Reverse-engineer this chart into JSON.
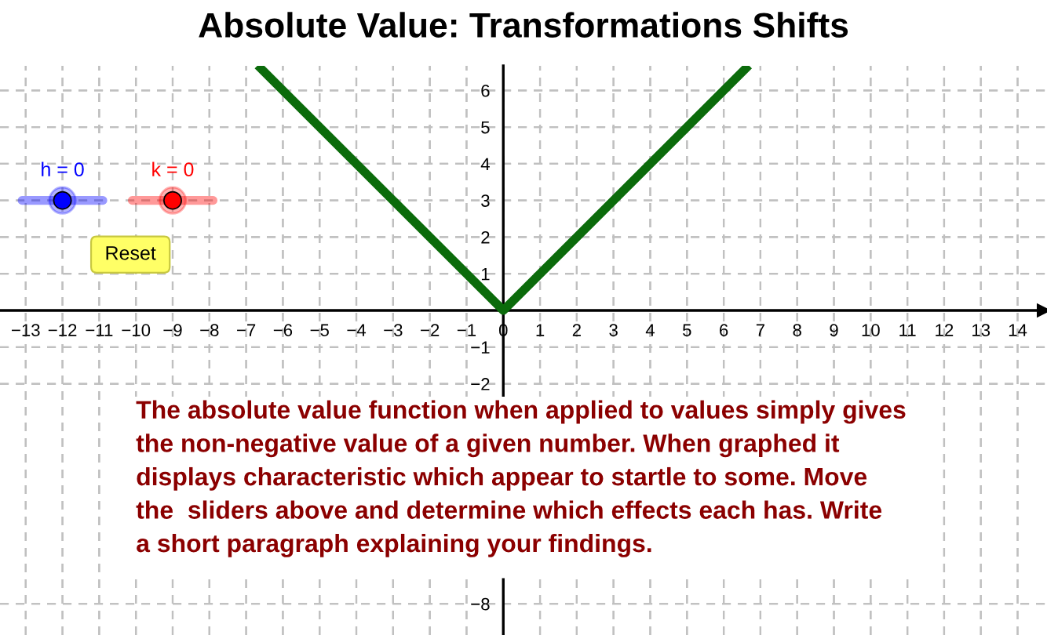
{
  "chart_data": {
    "type": "line",
    "title": "Absolute Value: Transformations Shifts",
    "x": [
      -6.6,
      0,
      6.6
    ],
    "series": [
      {
        "color": "#0b6b0b",
        "values": [
          6.6,
          0,
          6.6
        ]
      }
    ],
    "xlim": [
      -13.7,
      14.8
    ],
    "ylim": [
      -8.85,
      6.67
    ],
    "xticks": [
      -13,
      -12,
      -11,
      -10,
      -9,
      -8,
      -7,
      -6,
      -5,
      -4,
      -3,
      -2,
      -1,
      0,
      1,
      2,
      3,
      4,
      5,
      6,
      7,
      8,
      9,
      10,
      11,
      12,
      13,
      14
    ],
    "yticks": [
      -8,
      -2,
      -1,
      1,
      2,
      3,
      4,
      5,
      6
    ],
    "grid": true,
    "marker": "none",
    "line_style": "solid",
    "annotations": [
      "h = 0",
      "k = 0",
      "Reset",
      "The absolute value function when applied to values simply gives\nthe non-negative value of a given number. When graphed it\ndisplays characteristic which appear to startle to some. Move\nthe  sliders above and determine which effects each has. Write\na short paragraph explaining your findings."
    ]
  }
}
